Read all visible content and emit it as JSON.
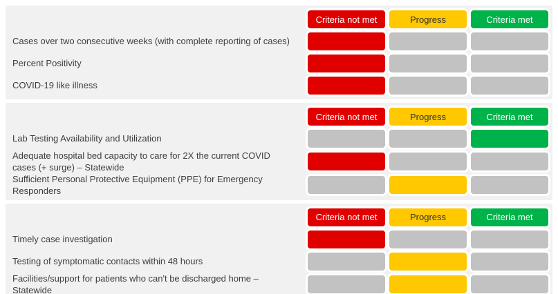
{
  "colors": {
    "red": "#e00000",
    "yellow": "#ffc800",
    "green": "#00b24a",
    "inactive": "#c2c2c2",
    "panel_bg": "#f1f1f1",
    "text": "#3d3d3d",
    "header_dark": "#333333"
  },
  "chart_data": {
    "type": "table",
    "columns": [
      "Criteria not met",
      "Progress",
      "Criteria met"
    ],
    "column_keys": [
      "not_met",
      "progress",
      "met"
    ],
    "column_colors": [
      "#e00000",
      "#ffc800",
      "#00b24a"
    ],
    "inactive_cell_color": "#c2c2c2",
    "legend_position": "top-of-each-section",
    "sections": [
      {
        "rows": [
          {
            "label": "Cases over two consecutive weeks (with complete reporting of cases)",
            "status": "not_met"
          },
          {
            "label": "Percent Positivity",
            "status": "not_met"
          },
          {
            "label": "COVID-19 like illness",
            "status": "not_met"
          }
        ]
      },
      {
        "rows": [
          {
            "label": "Lab Testing Availability and Utilization",
            "status": "met"
          },
          {
            "label": "Adequate hospital bed capacity to care for 2X the current COVID cases (+ surge) – Statewide",
            "status": "not_met"
          },
          {
            "label": "Sufficient Personal Protective Equipment (PPE) for Emergency Responders",
            "status": "progress"
          }
        ]
      },
      {
        "rows": [
          {
            "label": "Timely case investigation",
            "status": "not_met"
          },
          {
            "label": "Testing of symptomatic contacts within 48 hours",
            "status": "progress"
          },
          {
            "label": "Facilities/support for patients who can't be discharged home – Statewide",
            "status": "progress"
          }
        ]
      }
    ]
  }
}
